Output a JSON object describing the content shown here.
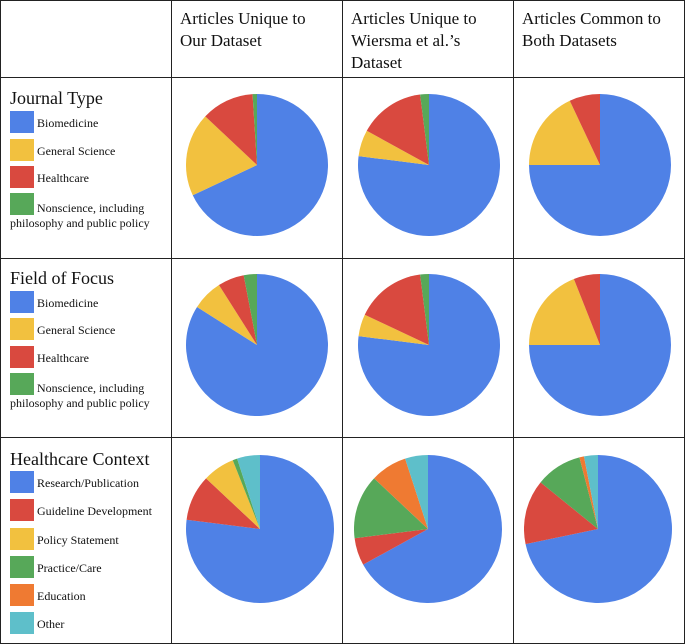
{
  "columns": [
    "Articles Unique to Our Dataset",
    "Articles Unique to Wiersma et al.’s Dataset",
    "Articles Common to Both Datasets"
  ],
  "colors": {
    "blue": "#4f81e6",
    "yellow": "#f2c13f",
    "red": "#d9493f",
    "green": "#57a859",
    "orange": "#ef7a32",
    "cyan": "#5ebfca"
  },
  "chart_data": [
    {
      "type": "pie",
      "title": "Journal Type",
      "legend": [
        "Biomedicine",
        "General Science",
        "Healthcare",
        "Nonscience, including philosophy and public policy"
      ],
      "legend_colors": [
        "#4f81e6",
        "#f2c13f",
        "#d9493f",
        "#57a859"
      ],
      "pies": [
        {
          "column": "Articles Unique to Our Dataset",
          "values": [
            68,
            19,
            12,
            1
          ]
        },
        {
          "column": "Articles Unique to Wiersma et al.’s Dataset",
          "values": [
            77,
            6,
            15,
            2
          ]
        },
        {
          "column": "Articles Common to Both Datasets",
          "values": [
            75,
            18,
            7,
            0
          ]
        }
      ]
    },
    {
      "type": "pie",
      "title": "Field of Focus",
      "legend": [
        "Biomedicine",
        "General Science",
        "Healthcare",
        "Nonscience, including philosophy and public policy"
      ],
      "legend_colors": [
        "#4f81e6",
        "#f2c13f",
        "#d9493f",
        "#57a859"
      ],
      "pies": [
        {
          "column": "Articles Unique to Our Dataset",
          "values": [
            84,
            7,
            6,
            3
          ]
        },
        {
          "column": "Articles Unique to Wiersma et al.’s Dataset",
          "values": [
            77,
            5,
            16,
            2
          ]
        },
        {
          "column": "Articles Common to Both Datasets",
          "values": [
            75,
            19,
            6,
            0
          ]
        }
      ]
    },
    {
      "type": "pie",
      "title": "Healthcare Context",
      "legend": [
        "Research/Publication",
        "Guideline Development",
        "Policy Statement",
        "Practice/Care",
        "Education",
        "Other"
      ],
      "legend_colors": [
        "#4f81e6",
        "#d9493f",
        "#f2c13f",
        "#57a859",
        "#ef7a32",
        "#5ebfca"
      ],
      "pies": [
        {
          "column": "Articles Unique to Our Dataset",
          "values": [
            77,
            10,
            7,
            1,
            0,
            5
          ]
        },
        {
          "column": "Articles Unique to Wiersma et al.’s Dataset",
          "values": [
            67,
            6,
            0,
            14,
            8,
            5
          ]
        },
        {
          "column": "Articles Common to Both Datasets",
          "values": [
            71,
            14,
            0,
            10,
            1,
            3
          ]
        }
      ]
    }
  ]
}
